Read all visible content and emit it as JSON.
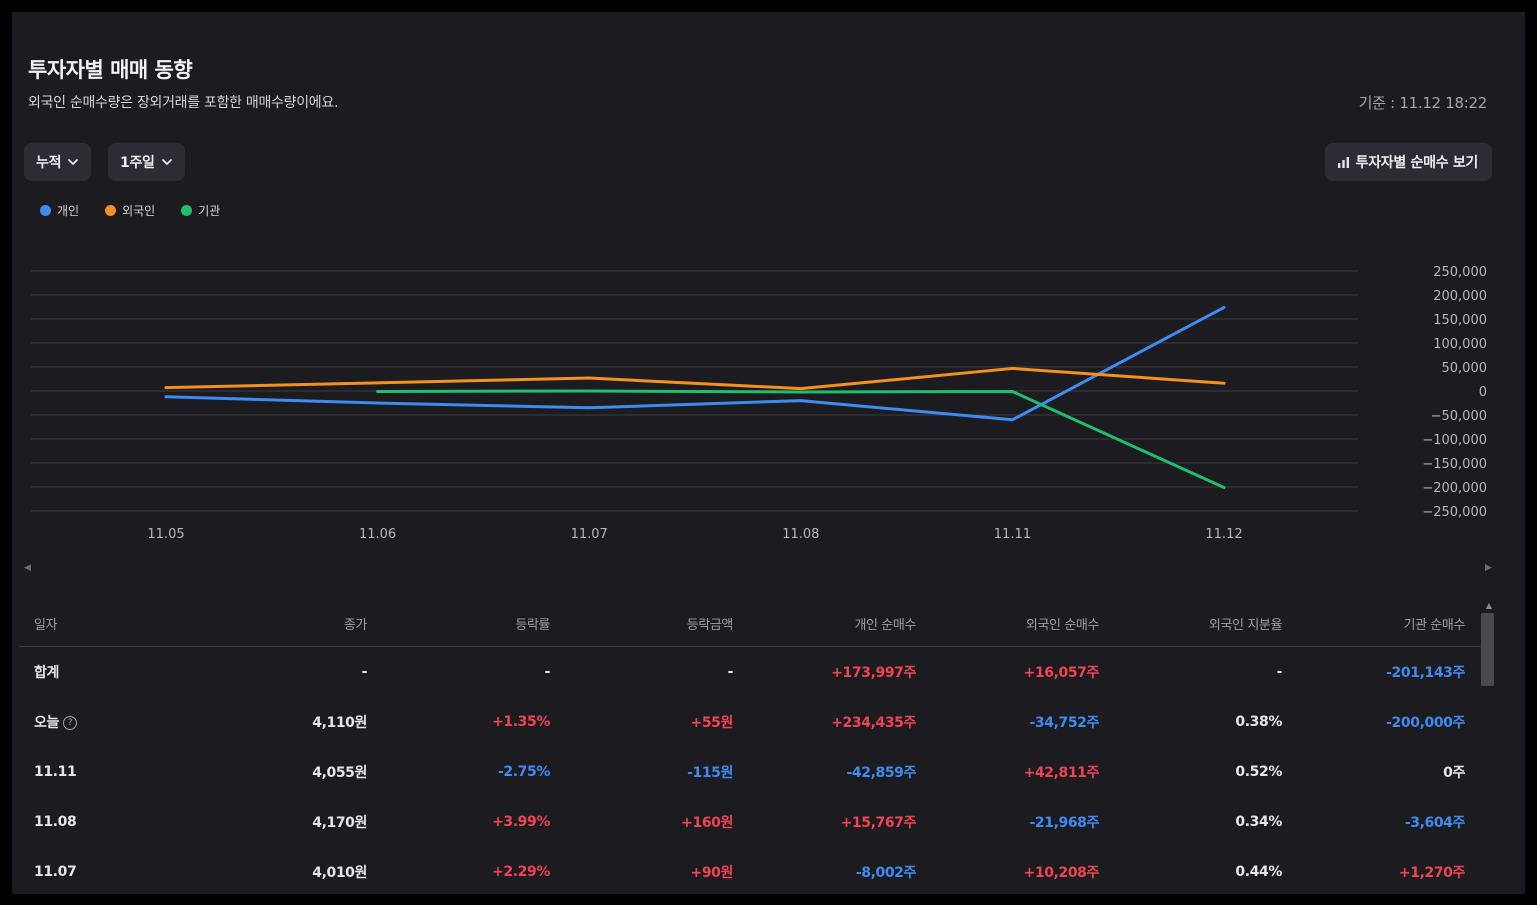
{
  "header": {
    "title": "투자자별 매매 동향",
    "subtitle": "외국인 순매수량은 장외거래를 포함한 매매수량이에요.",
    "basis": "기준 : 11.12 18:22"
  },
  "controls": {
    "mode_label": "누적",
    "period_label": "1주일",
    "net_button_label": "투자자별 순매수 보기"
  },
  "legend": [
    {
      "label": "개인",
      "color": "#3e8cf2"
    },
    {
      "label": "외국인",
      "color": "#f4901e"
    },
    {
      "label": "기관",
      "color": "#1fbf6e"
    }
  ],
  "chart_data": {
    "type": "line",
    "categories": [
      "11.05",
      "11.06",
      "11.07",
      "11.08",
      "11.11",
      "11.12"
    ],
    "series": [
      {
        "name": "개인",
        "color": "#3e8cf2",
        "values": [
          -12000,
          -25000,
          -35000,
          -20000,
          -60000,
          173997
        ]
      },
      {
        "name": "외국인",
        "color": "#f4901e",
        "values": [
          7000,
          17000,
          27000,
          5000,
          47000,
          16057
        ]
      },
      {
        "name": "기관",
        "color": "#1fbf6e",
        "values": [
          null,
          -1000,
          0,
          -2000,
          -1000,
          -201143
        ]
      }
    ],
    "ylim": [
      -250000,
      250000
    ],
    "yticks": [
      "250,000",
      "200,000",
      "150,000",
      "100,000",
      "50,000",
      "0",
      "−50,000",
      "−100,000",
      "−150,000",
      "−200,000",
      "−250,000"
    ],
    "grid": true,
    "title": "",
    "xlabel": "",
    "ylabel": ""
  },
  "table": {
    "headers": [
      "일자",
      "종가",
      "등락률",
      "등락금액",
      "개인 순매수",
      "외국인 순매수",
      "외국인 지분율",
      "기관 순매수"
    ],
    "rows": [
      {
        "date": "합계",
        "close": "-",
        "rate": "-",
        "amount": "-",
        "individual": "+173,997주",
        "foreign": "+16,057주",
        "foreign_ratio": "-",
        "institution": "-201,143주",
        "colors": [
          "neutral",
          "neutral",
          "neutral",
          "neutral",
          "up",
          "up",
          "neutral",
          "down"
        ]
      },
      {
        "date": "오늘",
        "close": "4,110원",
        "rate": "+1.35%",
        "amount": "+55원",
        "individual": "+234,435주",
        "foreign": "-34,752주",
        "foreign_ratio": "0.38%",
        "institution": "-200,000주",
        "colors": [
          "neutral",
          "neutral",
          "up",
          "up",
          "up",
          "down",
          "neutral",
          "down"
        ],
        "info": "?"
      },
      {
        "date": "11.11",
        "close": "4,055원",
        "rate": "-2.75%",
        "amount": "-115원",
        "individual": "-42,859주",
        "foreign": "+42,811주",
        "foreign_ratio": "0.52%",
        "institution": "0주",
        "colors": [
          "neutral",
          "neutral",
          "down",
          "down",
          "down",
          "up",
          "neutral",
          "neutral"
        ]
      },
      {
        "date": "11.08",
        "close": "4,170원",
        "rate": "+3.99%",
        "amount": "+160원",
        "individual": "+15,767주",
        "foreign": "-21,968주",
        "foreign_ratio": "0.34%",
        "institution": "-3,604주",
        "colors": [
          "neutral",
          "neutral",
          "up",
          "up",
          "up",
          "down",
          "neutral",
          "down"
        ]
      },
      {
        "date": "11.07",
        "close": "4,010원",
        "rate": "+2.29%",
        "amount": "+90원",
        "individual": "-8,002주",
        "foreign": "+10,208주",
        "foreign_ratio": "0.44%",
        "institution": "+1,270주",
        "colors": [
          "neutral",
          "neutral",
          "up",
          "up",
          "down",
          "up",
          "neutral",
          "up"
        ]
      }
    ]
  }
}
